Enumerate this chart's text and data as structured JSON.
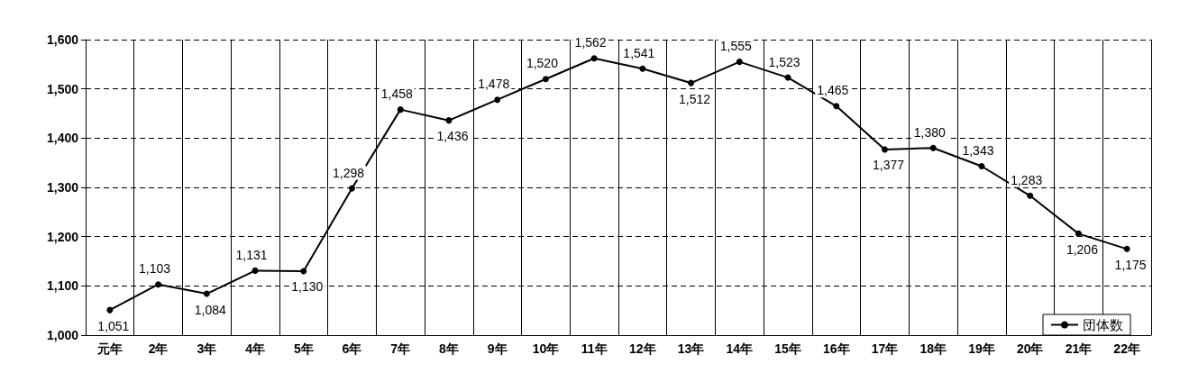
{
  "chart_data": {
    "type": "line",
    "categories": [
      "元年",
      "2年",
      "3年",
      "4年",
      "5年",
      "6年",
      "7年",
      "8年",
      "9年",
      "10年",
      "11年",
      "12年",
      "13年",
      "14年",
      "15年",
      "16年",
      "17年",
      "18年",
      "19年",
      "20年",
      "21年",
      "22年"
    ],
    "series": [
      {
        "name": "団体数",
        "color": "#000000",
        "values": [
          1051,
          1103,
          1084,
          1131,
          1130,
          1298,
          1458,
          1436,
          1478,
          1520,
          1562,
          1541,
          1512,
          1555,
          1523,
          1465,
          1377,
          1380,
          1343,
          1283,
          1206,
          1175
        ],
        "value_labels": [
          "1,051",
          "1,103",
          "1,084",
          "1,131",
          "1,130",
          "1,298",
          "1,458",
          "1,436",
          "1,478",
          "1,520",
          "1,562",
          "1,541",
          "1,512",
          "1,555",
          "1,523",
          "1,465",
          "1,377",
          "1,380",
          "1,343",
          "1,283",
          "1,206",
          "1,175"
        ]
      }
    ],
    "ylim": [
      1000,
      1600
    ],
    "yticks": [
      {
        "value": 1000,
        "label": "1,000"
      },
      {
        "value": 1100,
        "label": "1,100"
      },
      {
        "value": 1200,
        "label": "1,200"
      },
      {
        "value": 1300,
        "label": "1,300"
      },
      {
        "value": 1400,
        "label": "1,400"
      },
      {
        "value": 1500,
        "label": "1,500"
      },
      {
        "value": 1600,
        "label": "1,600"
      }
    ],
    "grid": true,
    "legend": "bottom right",
    "marker": "circle",
    "line_style": "solid"
  }
}
